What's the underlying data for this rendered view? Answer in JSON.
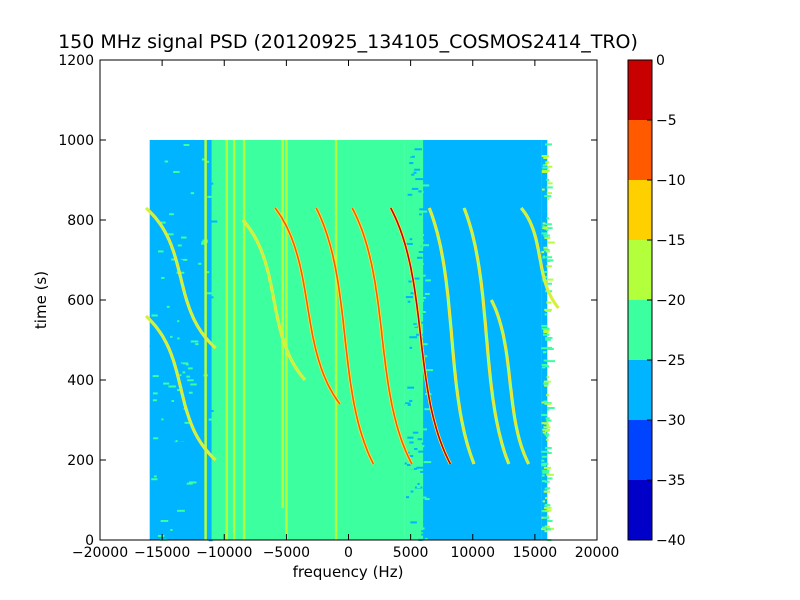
{
  "chart_data": {
    "type": "heatmap",
    "title": "150 MHz signal PSD (20120925_134105_COSMOS2414_TRO)",
    "xlabel": "frequency (Hz)",
    "ylabel": "time (s)",
    "xlim": [
      -20000,
      20000
    ],
    "ylim": [
      0,
      1200
    ],
    "xticks": [
      -20000,
      -15000,
      -10000,
      -5000,
      0,
      5000,
      10000,
      15000,
      20000
    ],
    "xtick_labels": [
      "−20000",
      "−15000",
      "−10000",
      "−5000",
      "0",
      "5000",
      "10000",
      "15000",
      "20000"
    ],
    "yticks": [
      0,
      200,
      400,
      600,
      800,
      1000,
      1200
    ],
    "ytick_labels": [
      "0",
      "200",
      "400",
      "600",
      "800",
      "1000",
      "1200"
    ],
    "data_extent": {
      "frequency": [
        -16000,
        16000
      ],
      "time": [
        0,
        1000
      ]
    },
    "background_levels": [
      {
        "from": -16000,
        "to": -11000,
        "level": -27
      },
      {
        "from": -11000,
        "to": 4500,
        "level": -23
      },
      {
        "from": 4500,
        "to": 6000,
        "level": -25
      },
      {
        "from": 6000,
        "to": 15500,
        "level": -28
      },
      {
        "from": 15500,
        "to": 16000,
        "level": -26
      }
    ],
    "doppler_traces": [
      {
        "f_center": -13500,
        "t_top": 830,
        "t_bottom": 480,
        "half_width": 2800,
        "peak": -18
      },
      {
        "f_center": -13500,
        "t_top": 560,
        "t_bottom": 200,
        "half_width": 2800,
        "peak": -19
      },
      {
        "f_center": -6000,
        "t_top": 800,
        "t_bottom": 400,
        "half_width": 2500,
        "peak": -19
      },
      {
        "f_center": -3300,
        "t_top": 830,
        "t_bottom": 340,
        "half_width": 2600,
        "peak": -8
      },
      {
        "f_center": -300,
        "t_top": 830,
        "t_bottom": 190,
        "half_width": 2300,
        "peak": -7
      },
      {
        "f_center": 2700,
        "t_top": 830,
        "t_bottom": 190,
        "half_width": 2400,
        "peak": -6
      },
      {
        "f_center": 5800,
        "t_top": 830,
        "t_bottom": 190,
        "half_width": 2400,
        "peak": -5
      },
      {
        "f_center": 8300,
        "t_top": 830,
        "t_bottom": 190,
        "half_width": 1800,
        "peak": -17
      },
      {
        "f_center": 11100,
        "t_top": 830,
        "t_bottom": 190,
        "half_width": 1800,
        "peak": -18
      },
      {
        "f_center": 13000,
        "t_top": 600,
        "t_bottom": 190,
        "half_width": 1500,
        "peak": -19
      },
      {
        "f_center": 15400,
        "t_top": 830,
        "t_bottom": 580,
        "half_width": 1500,
        "peak": -19
      }
    ],
    "vertical_lines": [
      {
        "f": -11500,
        "t_from": 0,
        "t_to": 1000,
        "level": -20
      },
      {
        "f": -9800,
        "t_from": 0,
        "t_to": 1000,
        "level": -17
      },
      {
        "f": -9200,
        "t_from": 0,
        "t_to": 1000,
        "level": -18
      },
      {
        "f": -8400,
        "t_from": 0,
        "t_to": 1000,
        "level": -17
      },
      {
        "f": -5300,
        "t_from": 80,
        "t_to": 1000,
        "level": -19
      },
      {
        "f": -5000,
        "t_from": 0,
        "t_to": 1000,
        "level": -18
      },
      {
        "f": -1000,
        "t_from": 0,
        "t_to": 1000,
        "level": -20
      }
    ],
    "colorbar": {
      "vmin": -40,
      "vmax": 0,
      "levels": [
        -40,
        -35,
        -30,
        -25,
        -20,
        -15,
        -10,
        -5,
        0
      ],
      "tick_labels": [
        "−40",
        "−35",
        "−30",
        "−25",
        "−20",
        "−15",
        "−10",
        "−5",
        "0"
      ],
      "colors": [
        "#0000c8",
        "#0044ff",
        "#00b4ff",
        "#3cffa0",
        "#b4ff3c",
        "#ffd000",
        "#ff5a00",
        "#c80000"
      ]
    },
    "grid": false,
    "legend": "none"
  }
}
